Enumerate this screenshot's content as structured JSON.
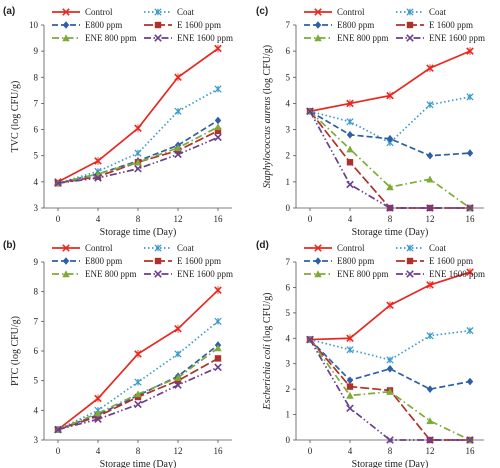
{
  "chart_data": [
    {
      "panel_label": "(a)",
      "type": "line",
      "x": [
        0,
        4,
        8,
        12,
        16
      ],
      "xlabel": "Storage time (Day)",
      "ylabel": "TVC (log CFU/g)",
      "ylim": [
        3,
        10
      ],
      "yticks": [
        3,
        4,
        5,
        6,
        7,
        8,
        9,
        10
      ],
      "series": [
        {
          "name": "Control",
          "values": [
            4.0,
            4.8,
            6.05,
            8.0,
            9.1
          ]
        },
        {
          "name": "Coat",
          "values": [
            3.95,
            4.4,
            5.1,
            6.7,
            7.55
          ]
        },
        {
          "name": "E800 ppm",
          "values": [
            3.95,
            4.3,
            4.8,
            5.4,
            6.35
          ]
        },
        {
          "name": "E 1600 ppm",
          "values": [
            3.95,
            4.2,
            4.75,
            5.2,
            5.95
          ]
        },
        {
          "name": "ENE 800 ppm",
          "values": [
            3.95,
            4.3,
            4.75,
            5.3,
            6.1
          ]
        },
        {
          "name": "ENE 1600 ppm",
          "values": [
            3.95,
            4.15,
            4.5,
            5.05,
            5.7
          ]
        }
      ]
    },
    {
      "panel_label": "(b)",
      "type": "line",
      "x": [
        0,
        4,
        8,
        12,
        16
      ],
      "xlabel": "Storage time (Day)",
      "ylabel": "PTC (log CFU/g)",
      "ylim": [
        3,
        9
      ],
      "yticks": [
        3,
        4,
        5,
        6,
        7,
        8,
        9
      ],
      "series": [
        {
          "name": "Control",
          "values": [
            3.35,
            4.4,
            5.9,
            6.75,
            8.05
          ]
        },
        {
          "name": "Coat",
          "values": [
            3.35,
            4.0,
            4.95,
            5.9,
            7.0
          ]
        },
        {
          "name": "E800 ppm",
          "values": [
            3.35,
            3.85,
            4.5,
            5.15,
            6.2
          ]
        },
        {
          "name": "E 1600 ppm",
          "values": [
            3.35,
            3.8,
            4.45,
            5.0,
            5.75
          ]
        },
        {
          "name": "ENE 800 ppm",
          "values": [
            3.35,
            3.9,
            4.55,
            5.1,
            6.1
          ]
        },
        {
          "name": "ENE 1600 ppm",
          "values": [
            3.35,
            3.7,
            4.2,
            4.85,
            5.45
          ]
        }
      ]
    },
    {
      "panel_label": "(c)",
      "type": "line",
      "x": [
        0,
        4,
        8,
        12,
        16
      ],
      "xlabel": "Storage time (Day)",
      "ylabel_italic": "Staphylococcus aureus",
      "ylabel_rest": " (log CFU/g)",
      "ylim": [
        0,
        7
      ],
      "yticks": [
        0,
        1,
        2,
        3,
        4,
        5,
        6,
        7
      ],
      "series": [
        {
          "name": "Control",
          "values": [
            3.7,
            4.0,
            4.3,
            5.35,
            6.0
          ]
        },
        {
          "name": "Coat",
          "values": [
            3.7,
            3.3,
            2.5,
            3.95,
            4.25
          ]
        },
        {
          "name": "E800 ppm",
          "values": [
            3.7,
            2.8,
            2.65,
            2.0,
            2.1
          ]
        },
        {
          "name": "E 1600 ppm",
          "values": [
            3.7,
            1.75,
            0.0,
            0.0,
            0.0
          ]
        },
        {
          "name": "ENE 800 ppm",
          "values": [
            3.7,
            2.25,
            0.8,
            1.1,
            0.0
          ]
        },
        {
          "name": "ENE 1600 ppm",
          "values": [
            3.7,
            0.9,
            0.0,
            0.0,
            0.0
          ]
        }
      ]
    },
    {
      "panel_label": "(d)",
      "type": "line",
      "x": [
        0,
        4,
        8,
        12,
        16
      ],
      "xlabel": "Storage time (Day)",
      "ylabel_italic": "Escherichia coli",
      "ylabel_rest": " (log CFU/g)",
      "ylim": [
        0,
        7
      ],
      "yticks": [
        0,
        1,
        2,
        3,
        4,
        5,
        6,
        7
      ],
      "series": [
        {
          "name": "Control",
          "values": [
            3.95,
            4.0,
            5.3,
            6.1,
            6.6
          ]
        },
        {
          "name": "Coat",
          "values": [
            3.95,
            3.55,
            3.15,
            4.1,
            4.3
          ]
        },
        {
          "name": "E800 ppm",
          "values": [
            3.95,
            2.35,
            2.8,
            2.0,
            2.3
          ]
        },
        {
          "name": "E 1600 ppm",
          "values": [
            3.95,
            2.1,
            1.95,
            0.0,
            0.0
          ]
        },
        {
          "name": "ENE 800 ppm",
          "values": [
            3.95,
            1.75,
            1.9,
            0.75,
            0.0
          ]
        },
        {
          "name": "ENE 1600 ppm",
          "values": [
            3.95,
            1.25,
            0.0,
            0.0,
            0.0
          ]
        }
      ]
    }
  ],
  "series_styles": [
    {
      "name": "Control",
      "color": "#e8271f",
      "marker": "x",
      "dash": "solid"
    },
    {
      "name": "Coat",
      "color": "#3a9ac9",
      "marker": "asterisk",
      "dash": "dotted"
    },
    {
      "name": "E800 ppm",
      "color": "#2e5fa6",
      "marker": "diamond",
      "dash": "dashed"
    },
    {
      "name": "E 1600 ppm",
      "color": "#b0302b",
      "marker": "square",
      "dash": "longdash"
    },
    {
      "name": "ENE 800 ppm",
      "color": "#7faa3a",
      "marker": "triangle",
      "dash": "dashdot"
    },
    {
      "name": "ENE 1600 ppm",
      "color": "#6a3d8f",
      "marker": "x",
      "dash": "dashdotdot"
    }
  ]
}
